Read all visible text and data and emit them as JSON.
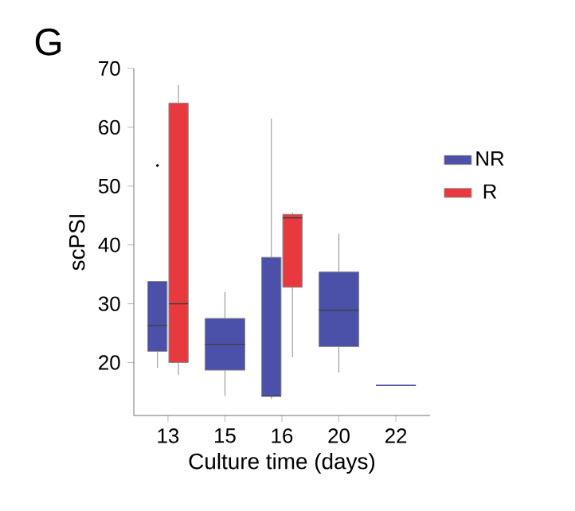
{
  "chart_data": {
    "type": "box",
    "title": "G",
    "xlabel": "Culture time (days)",
    "ylabel": "scPSI",
    "categories": [
      "13",
      "15",
      "16",
      "20",
      "22"
    ],
    "ylim": [
      11,
      70
    ],
    "yticks": [
      20,
      30,
      40,
      50,
      60,
      70
    ],
    "legend": "right",
    "series": [
      {
        "name": "NR",
        "color": "#4b50a8",
        "boxes": [
          {
            "low": 19.1,
            "q1": 21.9,
            "median": 26.3,
            "q3": 33.8,
            "high": 33.8,
            "outliers": [
              53.5
            ]
          },
          {
            "low": 14.3,
            "q1": 18.7,
            "median": 23.1,
            "q3": 27.5,
            "high": 32.0
          },
          {
            "low": 13.8,
            "q1": 14.3,
            "median": 14.3,
            "q3": 37.9,
            "high": 61.5
          },
          {
            "low": 18.3,
            "q1": 22.7,
            "median": 28.9,
            "q3": 35.4,
            "high": 41.9
          },
          {
            "low": 16.1,
            "q1": 16.1,
            "median": 16.1,
            "q3": 16.1,
            "high": 16.1
          }
        ]
      },
      {
        "name": "R",
        "color": "#e8393f",
        "boxes": [
          {
            "low": 17.9,
            "q1": 20.0,
            "median": 30.0,
            "q3": 64.1,
            "high": 67.2
          },
          null,
          {
            "low": 20.9,
            "q1": 32.8,
            "median": 44.6,
            "q3": 45.2,
            "high": 45.5
          },
          null,
          null
        ]
      }
    ]
  }
}
